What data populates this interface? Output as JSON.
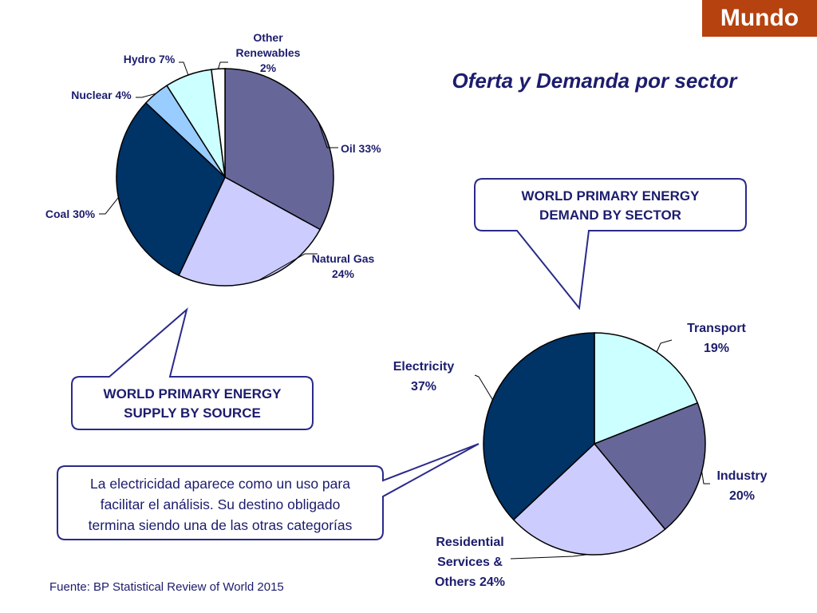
{
  "badge": "Mundo",
  "title": "Oferta y Demanda por sector",
  "source": "Fuente: BP Statistical Review of World 2015",
  "callouts": {
    "supply_line1": "WORLD PRIMARY ENERGY",
    "supply_line2": "SUPPLY BY SOURCE",
    "demand_line1": "WORLD PRIMARY ENERGY",
    "demand_line2": "DEMAND BY SECTOR",
    "note_line1": "La electricidad aparece como un uso para",
    "note_line2": "facilitar el análisis. Su destino obligado",
    "note_line3": "termina siendo una de las otras categorías"
  },
  "colors": {
    "badge": "#b6420f",
    "text": "#1c1c6e"
  },
  "chart_data": [
    {
      "type": "pie",
      "slices": [
        {
          "name": "Oil",
          "value": 33,
          "label_lines": [
            "Oil 33%"
          ],
          "color": "#666699"
        },
        {
          "name": "Natural Gas",
          "value": 24,
          "label_lines": [
            "Natural Gas",
            "24%"
          ],
          "color": "#ccccff"
        },
        {
          "name": "Coal",
          "value": 30,
          "label_lines": [
            "Coal 30%"
          ],
          "color": "#003366"
        },
        {
          "name": "Nuclear",
          "value": 4,
          "label_lines": [
            "Nuclear 4%"
          ],
          "color": "#99ccff"
        },
        {
          "name": "Hydro",
          "value": 7,
          "label_lines": [
            "Hydro 7%"
          ],
          "color": "#ccffff"
        },
        {
          "name": "Other Renewables",
          "value": 2,
          "label_lines": [
            "Other",
            "Renewables",
            "2%"
          ],
          "color": "#ffffff"
        }
      ]
    },
    {
      "type": "pie",
      "slices": [
        {
          "name": "Transport",
          "value": 19,
          "label_lines": [
            "Transport",
            "19%"
          ],
          "color": "#ccffff"
        },
        {
          "name": "Industry",
          "value": 20,
          "label_lines": [
            "Industry",
            "20%"
          ],
          "color": "#666699"
        },
        {
          "name": "Residential Services & Others",
          "value": 24,
          "label_lines": [
            "Residential",
            "Services &",
            "Others 24%"
          ],
          "color": "#ccccff"
        },
        {
          "name": "Electricity",
          "value": 37,
          "label_lines": [
            "Electricity",
            "37%"
          ],
          "color": "#003366"
        }
      ]
    }
  ]
}
